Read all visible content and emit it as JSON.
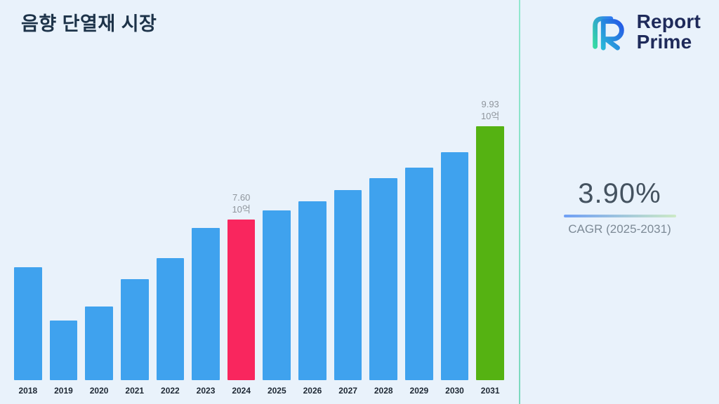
{
  "title": "음향 단열재 시장",
  "logo": {
    "line1": "Report",
    "line2": "Prime"
  },
  "cagr": {
    "value": "3.90%",
    "label": "CAGR (2025-2031)"
  },
  "chart_data": {
    "type": "bar",
    "title": "음향 단열재 시장",
    "categories": [
      "2018",
      "2019",
      "2020",
      "2021",
      "2022",
      "2023",
      "2024",
      "2025",
      "2026",
      "2027",
      "2028",
      "2029",
      "2030",
      "2031"
    ],
    "values": [
      6.42,
      5.08,
      5.43,
      6.12,
      6.64,
      7.39,
      7.6,
      7.84,
      8.07,
      8.35,
      8.64,
      8.9,
      9.29,
      9.93
    ],
    "unit": "10억",
    "ylim": [
      3.6,
      10.6
    ],
    "grid": false,
    "legend": false,
    "bar_color": "#3fa2ee",
    "highlights": [
      {
        "category": "2024",
        "value_label": "7.60",
        "unit_label": "10억",
        "color": "#f9265e"
      },
      {
        "category": "2031",
        "value_label": "9.93",
        "unit_label": "10억",
        "color": "#55b212"
      }
    ]
  },
  "colors": {
    "background": "#e9f2fb",
    "divider": "#86e2c6",
    "underline_start": "#6f9ff5",
    "underline_end": "#cdeac6"
  }
}
